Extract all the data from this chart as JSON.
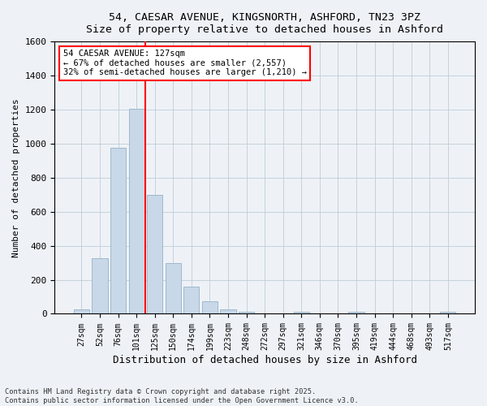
{
  "title_line1": "54, CAESAR AVENUE, KINGSNORTH, ASHFORD, TN23 3PZ",
  "title_line2": "Size of property relative to detached houses in Ashford",
  "xlabel": "Distribution of detached houses by size in Ashford",
  "ylabel": "Number of detached properties",
  "bar_labels": [
    "27sqm",
    "52sqm",
    "76sqm",
    "101sqm",
    "125sqm",
    "150sqm",
    "174sqm",
    "199sqm",
    "223sqm",
    "248sqm",
    "272sqm",
    "297sqm",
    "321sqm",
    "346sqm",
    "370sqm",
    "395sqm",
    "419sqm",
    "444sqm",
    "468sqm",
    "493sqm",
    "517sqm"
  ],
  "bar_values": [
    25,
    325,
    975,
    1205,
    700,
    300,
    160,
    75,
    25,
    10,
    0,
    0,
    10,
    0,
    0,
    10,
    0,
    0,
    0,
    0,
    10
  ],
  "bar_color": "#c8d8e8",
  "bar_edgecolor": "#a0b8cc",
  "grid_color": "#c0ccd6",
  "background_color": "#eef2f7",
  "vline_x": 3.5,
  "vline_color": "red",
  "annotation_text": "54 CAESAR AVENUE: 127sqm\n← 67% of detached houses are smaller (2,557)\n32% of semi-detached houses are larger (1,210) →",
  "annotation_box_color": "white",
  "annotation_box_edgecolor": "red",
  "ylim": [
    0,
    1600
  ],
  "yticks": [
    0,
    200,
    400,
    600,
    800,
    1000,
    1200,
    1400,
    1600
  ],
  "footnote": "Contains HM Land Registry data © Crown copyright and database right 2025.\nContains public sector information licensed under the Open Government Licence v3.0."
}
